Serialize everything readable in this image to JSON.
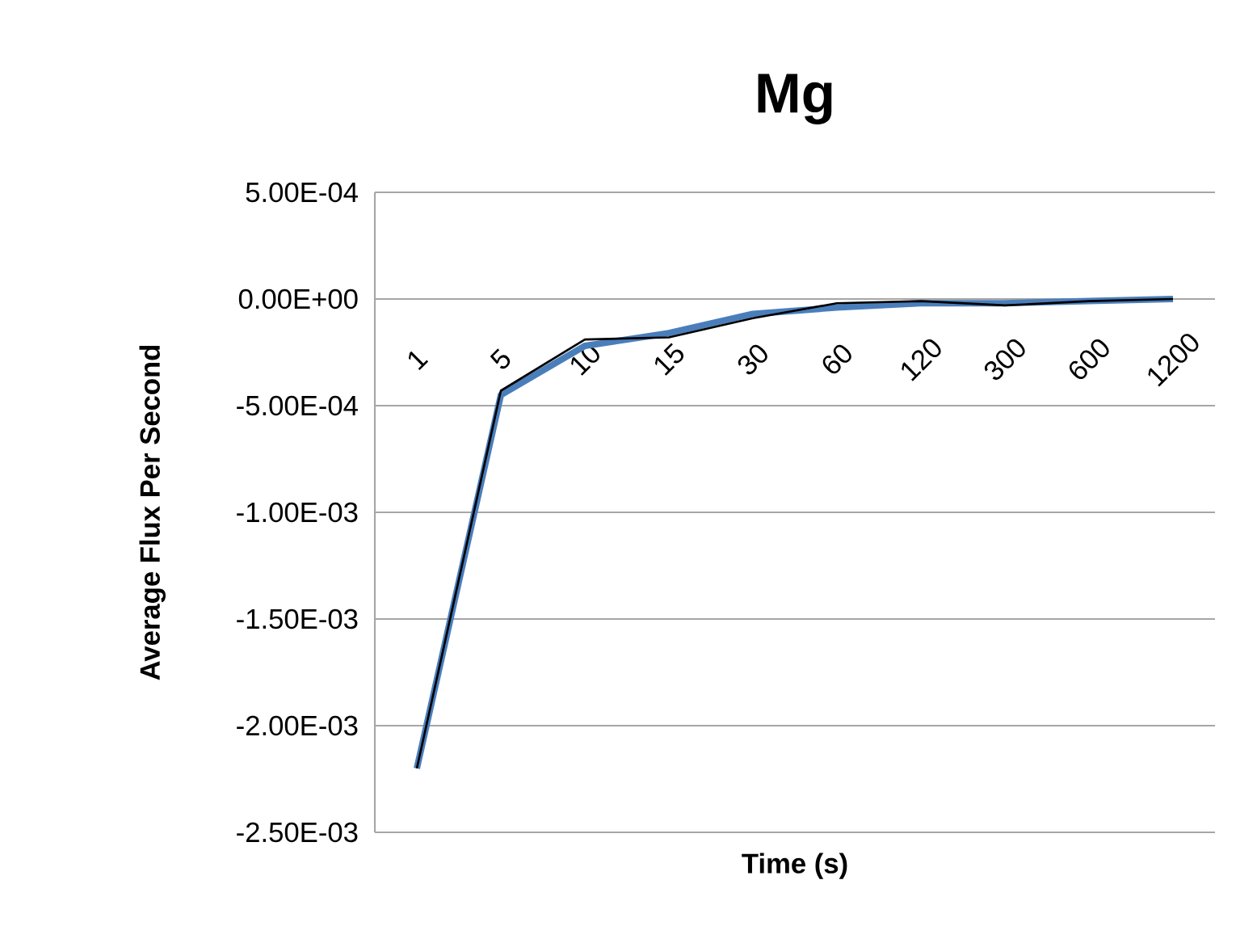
{
  "chart_data": {
    "type": "line",
    "title": "Mg",
    "xlabel": "Time (s)",
    "ylabel": "Average Flux Per Second",
    "categories": [
      "1",
      "5",
      "10",
      "15",
      "30",
      "60",
      "120",
      "300",
      "600",
      "1200"
    ],
    "series": [
      {
        "color": "#4a7ebb",
        "values": [
          -0.0022,
          -0.00045,
          -0.00022,
          -0.00016,
          -7e-05,
          -4e-05,
          -2e-05,
          -2e-05,
          -1e-05,
          0
        ]
      },
      {
        "color": "#000000",
        "values": [
          -0.0022,
          -0.00043,
          -0.00019,
          -0.00018,
          -9e-05,
          -2e-05,
          -1e-05,
          -3e-05,
          -1e-05,
          0
        ]
      }
    ],
    "ylim": [
      -0.0025,
      0.0005
    ],
    "yticks": [
      {
        "value": -0.0025,
        "label": "-2.50E-03"
      },
      {
        "value": -0.002,
        "label": "-2.00E-03"
      },
      {
        "value": -0.0015,
        "label": "-1.50E-03"
      },
      {
        "value": -0.001,
        "label": "-1.00E-03"
      },
      {
        "value": -0.0005,
        "label": "-5.00E-04"
      },
      {
        "value": 0,
        "label": "0.00E+00"
      },
      {
        "value": 0.0005,
        "label": "5.00E-04"
      }
    ],
    "grid": "y",
    "marker": "none",
    "line_style": "solid"
  }
}
